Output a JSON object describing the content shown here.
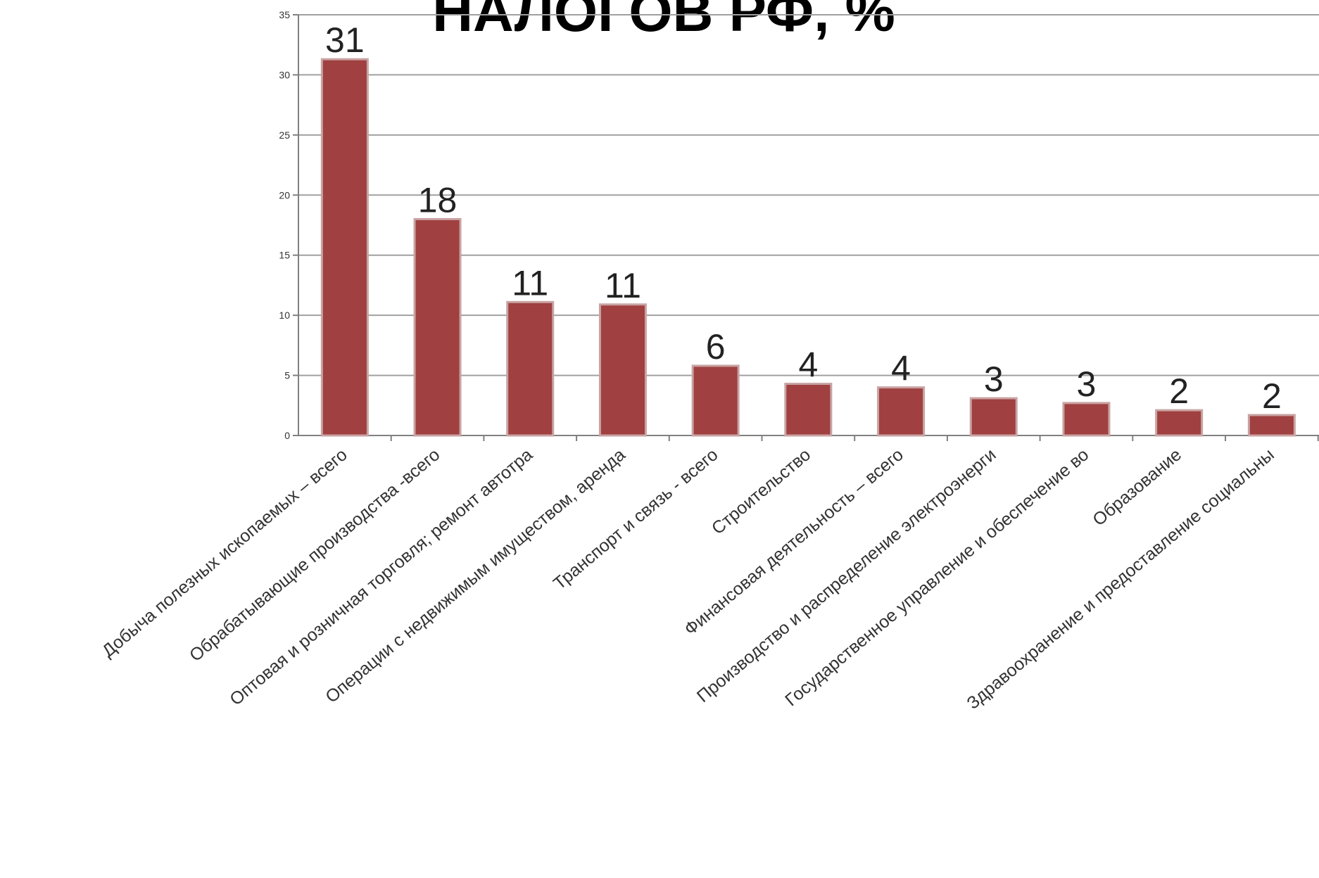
{
  "chart_data": {
    "type": "bar",
    "title": "НАЛОГОВ РФ, %",
    "categories": [
      "Добыча полезных ископаемых – всего",
      "Обрабатывающие производства -всего",
      "Оптовая и розничная торговля; ремонт автотра",
      "Операции с недвижимым имуществом, аренда",
      "Транспорт и связь - всего",
      "Строительство",
      "Финансовая деятельность – всего",
      "Производство и распределение электроэнерги",
      "Государственное управление и обеспечение во",
      "Образование",
      "Здравоохранение и предоставление социальны"
    ],
    "values": [
      31.3,
      18,
      11.1,
      10.9,
      5.8,
      4.3,
      4,
      3.1,
      2.7,
      2.1,
      1.7
    ],
    "labels": [
      "31",
      "18",
      "11",
      "11",
      "6",
      "4",
      "4",
      "3",
      "3",
      "2",
      "2"
    ],
    "ylim": [
      0,
      35
    ],
    "yticks": [
      0,
      5,
      10,
      15,
      20,
      25,
      30,
      35
    ],
    "grid": true,
    "legend": "none",
    "colors": {
      "bar": "#A04040",
      "bar_edge": "#C9A3A3",
      "grid": "#A0A0A0",
      "axis": "#808080"
    }
  }
}
